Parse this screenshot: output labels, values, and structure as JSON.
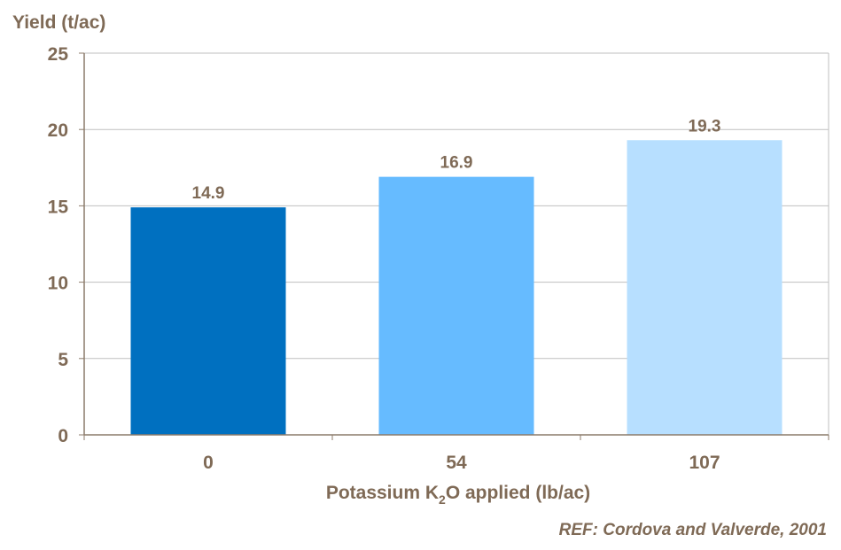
{
  "chart_data": {
    "type": "bar",
    "ylabel": "Yield (t/ac)",
    "xlabel_parts": [
      "Potassium K",
      "2",
      "O applied (lb/ac)"
    ],
    "categories": [
      "0",
      "54",
      "107"
    ],
    "values": [
      14.9,
      16.9,
      19.3
    ],
    "value_labels": [
      "14.9",
      "16.9",
      "19.3"
    ],
    "bar_colors": [
      "#0070c0",
      "#66bbff",
      "#b7dfff"
    ],
    "ylim": [
      0,
      25
    ],
    "yticks": [
      "0",
      "5",
      "10",
      "15",
      "20",
      "25"
    ],
    "grid": true,
    "text_color": "#7f6a56",
    "axis_color": "#8c7b6b",
    "grid_color": "#bfbfbf"
  },
  "reference": "REF: Cordova and Valverde, 2001"
}
